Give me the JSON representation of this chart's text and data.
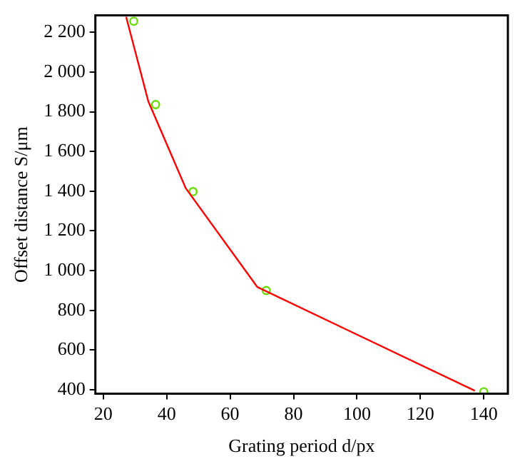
{
  "chart_data": {
    "type": "scatter",
    "xlabel": "Grating period d/px",
    "ylabel": "Offset distance S/μm",
    "xlim": [
      17.5,
      147.6
    ],
    "xticks": [
      20,
      40,
      60,
      80,
      100,
      120,
      140
    ],
    "ylim": [
      380,
      2285
    ],
    "yticks": [
      {
        "value": 400,
        "label": "400"
      },
      {
        "value": 600,
        "label": "600"
      },
      {
        "value": 800,
        "label": "800"
      },
      {
        "value": 1000,
        "label": "1 000"
      },
      {
        "value": 1200,
        "label": "1 200"
      },
      {
        "value": 1400,
        "label": "1 400"
      },
      {
        "value": 1600,
        "label": "1 600"
      },
      {
        "value": 1800,
        "label": "1 800"
      },
      {
        "value": 2000,
        "label": "2 000"
      },
      {
        "value": 2200,
        "label": "2 200"
      }
    ],
    "grid": false,
    "legend": false,
    "series": [
      {
        "type": "line",
        "color": "#ff0000",
        "marker": "none",
        "line_style": "solid",
        "x": [
          27.2,
          34.2,
          46,
          68.6,
          137.2
        ],
        "values": [
          2278,
          1852,
          1415,
          917,
          395
        ]
      },
      {
        "type": "scatter",
        "color": "#66dd00",
        "marker": "circle",
        "x": [
          29.6,
          36.5,
          48.3,
          71.4,
          140
        ],
        "values": [
          2256,
          1836,
          1398,
          900,
          390
        ]
      }
    ]
  }
}
